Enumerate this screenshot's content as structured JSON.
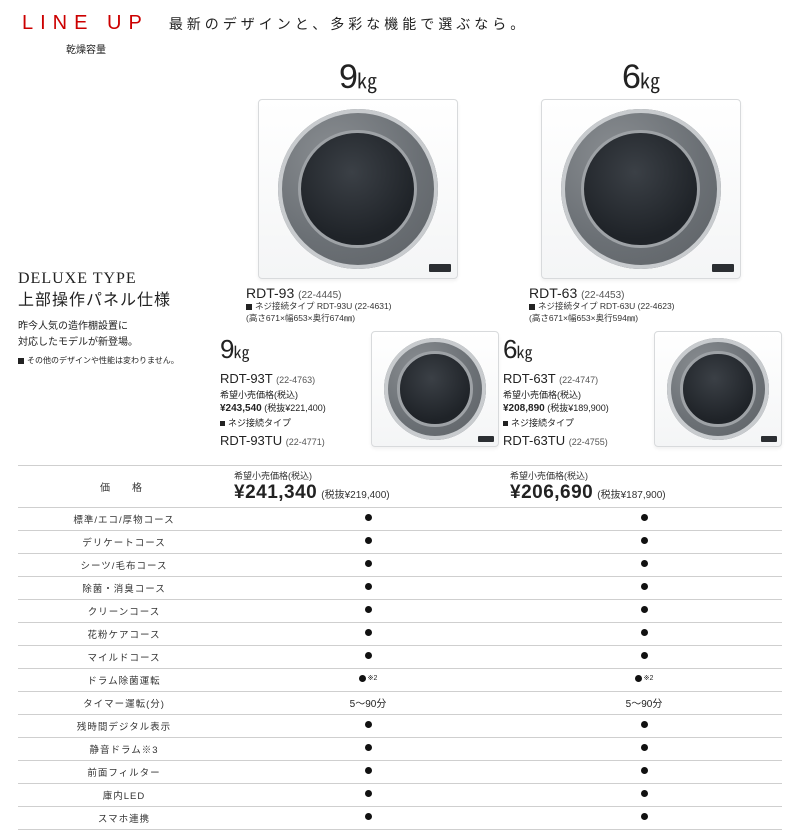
{
  "colors": {
    "accent_red": "#cc0000",
    "text": "#222222",
    "border": "#cfcfcf",
    "drum_dark": "#1f2328",
    "drum_mid": "#6b7075",
    "drum_ring": "#c8cbce",
    "box_border": "#d8dadc"
  },
  "header": {
    "lineup": "LINE UP",
    "subtitle": "乾燥容量",
    "tagline": "最新のデザインと、多彩な機能で選ぶなら。"
  },
  "deluxe": {
    "title_en": "DELUXE TYPE",
    "title_jp": "上部操作パネル仕様",
    "desc_l1": "昨今人気の造作棚設置に",
    "desc_l2": "対応したモデルが新登場。",
    "footnote": "その他のデザインや性能は変わりません。"
  },
  "products": [
    {
      "capacity_num": "9",
      "capacity_unit": "㎏",
      "model": "RDT-93",
      "code": "(22-4445)",
      "variant_label": "ネジ接続タイプ RDT-93U (22-4631)",
      "dims": "(高さ671×幅653×奥行674㎜)",
      "sub": {
        "capacity_num": "9",
        "capacity_unit": "㎏",
        "model": "RDT-93T",
        "code": "(22-4763)",
        "price_label": "希望小売価格(税込)",
        "price": "¥243,540",
        "price_tax": "(税抜¥221,400)",
        "variant_label": "ネジ接続タイプ",
        "variant_model": "RDT-93TU",
        "variant_code": "(22-4771)"
      },
      "main_price": {
        "label": "希望小売価格(税込)",
        "value": "¥241,340",
        "tax": "(税抜¥219,400)"
      }
    },
    {
      "capacity_num": "6",
      "capacity_unit": "㎏",
      "model": "RDT-63",
      "code": "(22-4453)",
      "variant_label": "ネジ接続タイプ RDT-63U (22-4623)",
      "dims": "(高さ671×幅653×奥行594㎜)",
      "sub": {
        "capacity_num": "6",
        "capacity_unit": "㎏",
        "model": "RDT-63T",
        "code": "(22-4747)",
        "price_label": "希望小売価格(税込)",
        "price": "¥208,890",
        "price_tax": "(税抜¥189,900)",
        "variant_label": "ネジ接続タイプ",
        "variant_model": "RDT-63TU",
        "variant_code": "(22-4755)"
      },
      "main_price": {
        "label": "希望小売価格(税込)",
        "value": "¥206,690",
        "tax": "(税抜¥187,900)"
      }
    }
  ],
  "spec_table": {
    "price_label": "価　格",
    "rows": [
      {
        "label": "標準/エコ/厚物コース",
        "type": "dot"
      },
      {
        "label": "デリケートコース",
        "type": "dot"
      },
      {
        "label": "シーツ/毛布コース",
        "type": "dot"
      },
      {
        "label": "除菌・消臭コース",
        "type": "dot"
      },
      {
        "label": "クリーンコース",
        "type": "dot"
      },
      {
        "label": "花粉ケアコース",
        "type": "dot"
      },
      {
        "label": "マイルドコース",
        "type": "dot"
      },
      {
        "label": "ドラム除菌運転",
        "type": "dot_note",
        "note": "※2"
      },
      {
        "label": "タイマー運転(分)",
        "type": "text",
        "v1": "5～90分",
        "v2": "5～90分"
      },
      {
        "label": "残時間デジタル表示",
        "type": "dot"
      },
      {
        "label": "静音ドラム※3",
        "type": "dot"
      },
      {
        "label": "前面フィルター",
        "type": "dot"
      },
      {
        "label": "庫内LED",
        "type": "dot"
      },
      {
        "label": "スマホ連携",
        "type": "dot"
      }
    ]
  }
}
